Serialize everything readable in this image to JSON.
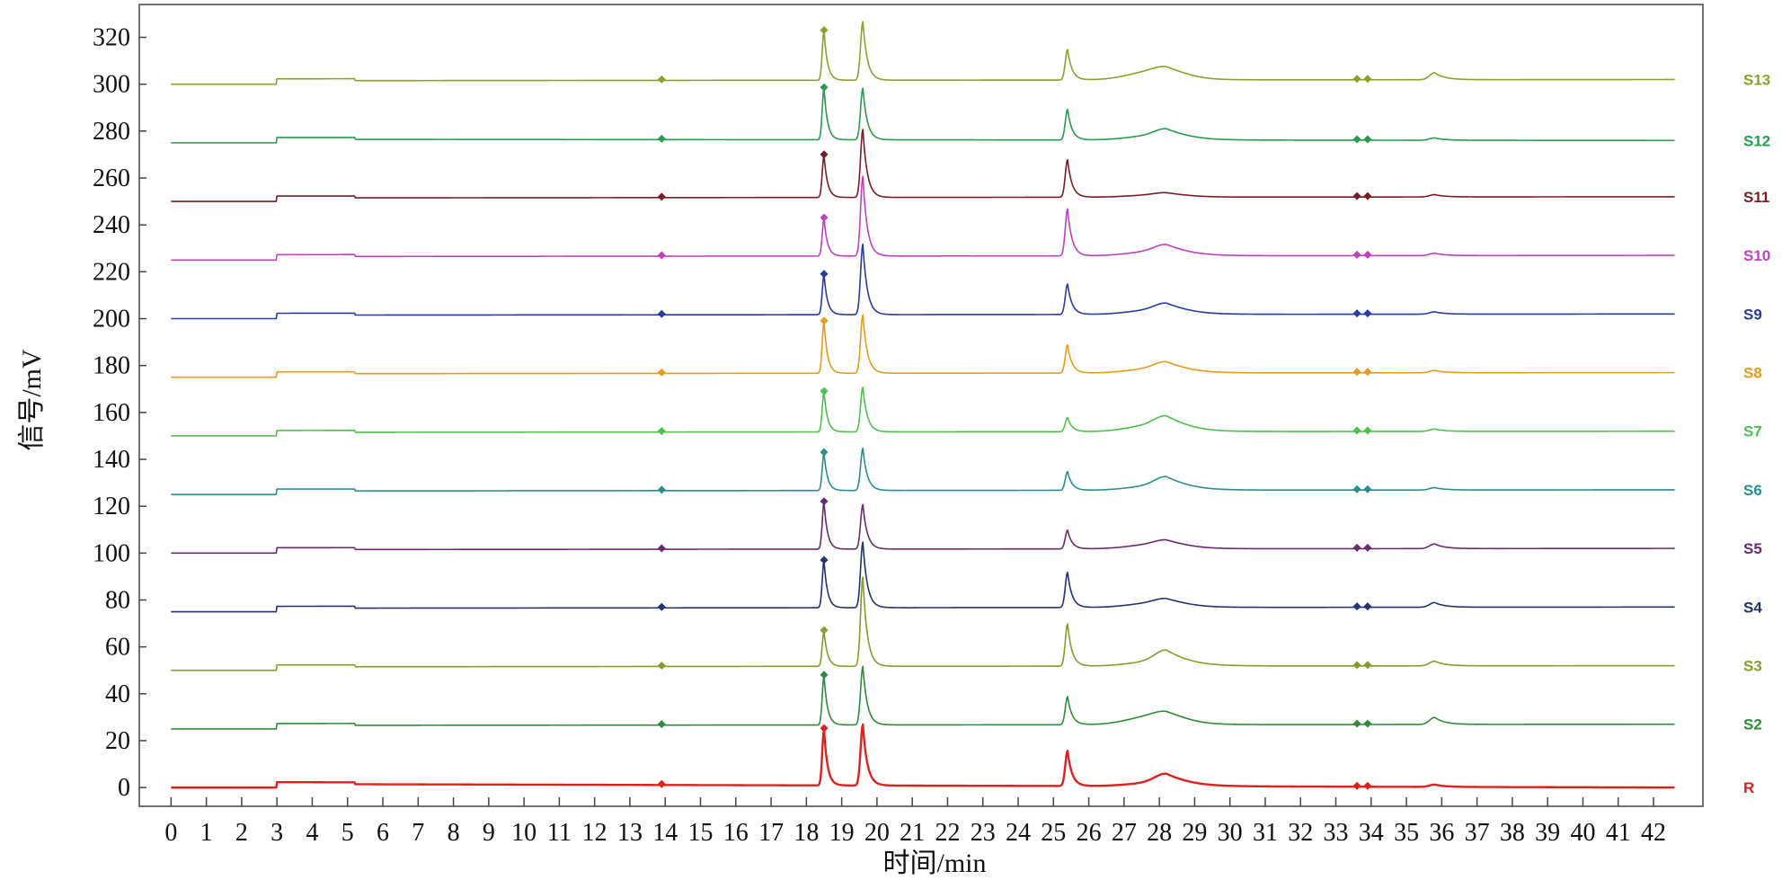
{
  "chart_data": {
    "type": "line",
    "xlabel": "时间/min",
    "ylabel": "信号/mV",
    "xlim": [
      -0.9,
      43.4
    ],
    "ylim": [
      -8,
      334
    ],
    "x_ticks": [
      0,
      1,
      2,
      3,
      4,
      5,
      6,
      7,
      8,
      9,
      10,
      11,
      12,
      13,
      14,
      15,
      16,
      17,
      18,
      19,
      20,
      21,
      22,
      23,
      24,
      25,
      26,
      27,
      28,
      29,
      30,
      31,
      32,
      33,
      34,
      35,
      36,
      37,
      38,
      39,
      40,
      41,
      42
    ],
    "y_ticks": [
      0,
      20,
      40,
      60,
      80,
      100,
      120,
      140,
      160,
      180,
      200,
      220,
      240,
      260,
      280,
      300,
      320
    ],
    "grid": false,
    "legend": "right, labels at end of each trace",
    "marker_times": [
      13.9,
      18.5,
      33.6,
      33.9
    ],
    "peaks": [
      {
        "t": 18.5,
        "w": 0.07
      },
      {
        "t": 19.6,
        "w": 0.09
      },
      {
        "t": 25.4,
        "w": 0.09
      },
      {
        "t": 28.2,
        "w": 0.45
      },
      {
        "t": 35.8,
        "w": 0.2
      }
    ],
    "series": [
      {
        "name": "R",
        "color": "#e0201e",
        "baseline": 0,
        "end": 0,
        "heights": [
          24,
          26,
          15,
          4,
          1
        ],
        "ridge": 1.5
      },
      {
        "name": "S2",
        "color": "#2e8b3a",
        "baseline": 25,
        "end": 27,
        "heights": [
          21,
          25,
          12,
          2,
          3
        ],
        "ridge": 4
      },
      {
        "name": "S3",
        "color": "#8a9a2a",
        "baseline": 50,
        "end": 52,
        "heights": [
          15,
          38,
          18,
          5,
          2
        ],
        "ridge": 2
      },
      {
        "name": "S4",
        "color": "#22336e",
        "baseline": 75,
        "end": 77,
        "heights": [
          20,
          28,
          15,
          2,
          2
        ],
        "ridge": 2
      },
      {
        "name": "S5",
        "color": "#6a2a6e",
        "baseline": 100,
        "end": 102,
        "heights": [
          20,
          19,
          8,
          2,
          2
        ],
        "ridge": 2
      },
      {
        "name": "S6",
        "color": "#2a8f8a",
        "baseline": 125,
        "end": 127,
        "heights": [
          16,
          18,
          8,
          4,
          1
        ],
        "ridge": 2
      },
      {
        "name": "S7",
        "color": "#4cc24c",
        "baseline": 150,
        "end": 152,
        "heights": [
          17,
          19,
          6,
          4,
          1
        ],
        "ridge": 3
      },
      {
        "name": "S8",
        "color": "#e89a1c",
        "baseline": 175,
        "end": 177,
        "heights": [
          22,
          25,
          12,
          3,
          1
        ],
        "ridge": 2
      },
      {
        "name": "S9",
        "color": "#2a3aa0",
        "baseline": 200,
        "end": 202,
        "heights": [
          17,
          30,
          13,
          3,
          1
        ],
        "ridge": 2
      },
      {
        "name": "S10",
        "color": "#c040c0",
        "baseline": 225,
        "end": 227,
        "heights": [
          16,
          34,
          20,
          3,
          1
        ],
        "ridge": 2
      },
      {
        "name": "S11",
        "color": "#7a1c28",
        "baseline": 250,
        "end": 252,
        "heights": [
          18,
          29,
          16,
          1,
          1
        ],
        "ridge": 1
      },
      {
        "name": "S12",
        "color": "#2a9a50",
        "baseline": 275,
        "end": 276,
        "heights": [
          22,
          22,
          13,
          3,
          1
        ],
        "ridge": 2
      },
      {
        "name": "S13",
        "color": "#8fa02a",
        "baseline": 300,
        "end": 302,
        "heights": [
          21,
          25,
          13,
          2,
          3
        ],
        "ridge": 4
      }
    ]
  }
}
